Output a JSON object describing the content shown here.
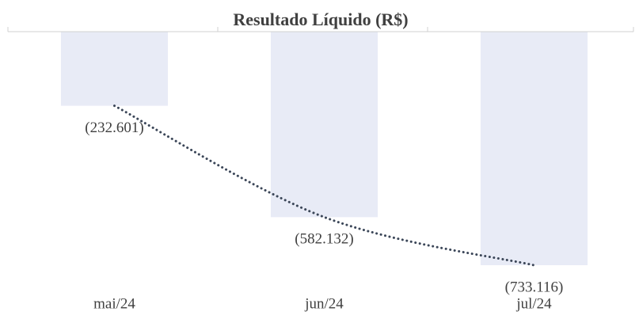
{
  "chart_data": {
    "type": "bar",
    "title": "Resultado Líquido (R$)",
    "categories": [
      "mai/24",
      "jun/24",
      "jul/24"
    ],
    "values": [
      -232601,
      -582132,
      -733116
    ],
    "value_labels": [
      "(232.601)",
      "(582.132)",
      "(733.116)"
    ],
    "color": "#e8ebf6",
    "ylim": [
      -800000,
      0
    ],
    "trendline": {
      "style": "dotted",
      "color": "#3b4658"
    }
  }
}
